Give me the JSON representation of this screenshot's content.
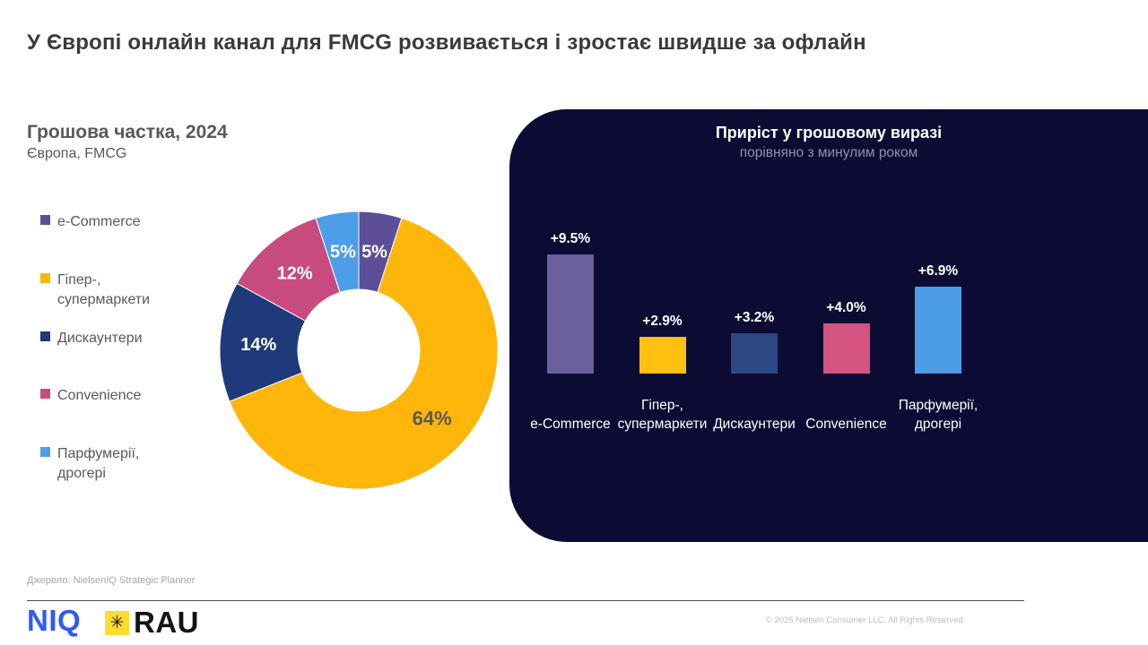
{
  "page": {
    "title": "У Європі онлайн канал для FMCG розвивається і зростає швидше за офлайн",
    "source": "Джерело: NielsenIQ Strategic Planner",
    "copyright": "© 2025 Nielsen Consumer LLC. All Rights Reserved.",
    "niq_logo": "NIQ",
    "rau_logo": "RAU",
    "rau_icon_glyph": "✳"
  },
  "donut_section": {
    "title": "Грошова частка, 2024",
    "subtitle": "Європа, FMCG"
  },
  "panel_section": {
    "title": "Приріст у грошовому виразі",
    "subtitle": "порівняно з минулим роком",
    "bg_color": "#0b0b33"
  },
  "chart_data": [
    {
      "type": "pie",
      "donut": true,
      "title": "Грошова частка, 2024",
      "subtitle": "Європа, FMCG",
      "unit": "%",
      "labels": [
        "e-Commerce",
        "Гіпер-, супермаркети",
        "Дискаунтери",
        "Convenience",
        "Парфумерії, дрогері"
      ],
      "values": [
        5,
        64,
        14,
        12,
        5
      ],
      "data_labels": [
        "5%",
        "64%",
        "14%",
        "12%",
        "5%"
      ],
      "colors": [
        "#5c4f97",
        "#ffb60a",
        "#1f3a7a",
        "#c74b7e",
        "#4b9ee7"
      ],
      "label_colors": [
        "#ffffff",
        "#595959",
        "#ffffff",
        "#ffffff",
        "#ffffff"
      ],
      "start_angle_deg": 0,
      "direction": "clockwise",
      "legend_position": "left"
    },
    {
      "type": "bar",
      "title": "Приріст у грошовому виразі",
      "subtitle": "порівняно з минулим роком",
      "categories": [
        "e-Commerce",
        "Гіпер-, супермаркети",
        "Дискаунтери",
        "Convenience",
        "Парфумерії, дрогері"
      ],
      "values": [
        9.5,
        2.9,
        3.2,
        4.0,
        6.9
      ],
      "data_labels": [
        "+9.5%",
        "+2.9%",
        "+3.2%",
        "+4.0%",
        "+6.9%"
      ],
      "colors": [
        "#6c5f9d",
        "#ffc010",
        "#2b4784",
        "#d4537f",
        "#4c9de6"
      ],
      "ylim": [
        0,
        10.5
      ],
      "grid": false,
      "legend": false,
      "value_label_color": "#ffffff",
      "category_label_color": "#ffffff"
    }
  ]
}
